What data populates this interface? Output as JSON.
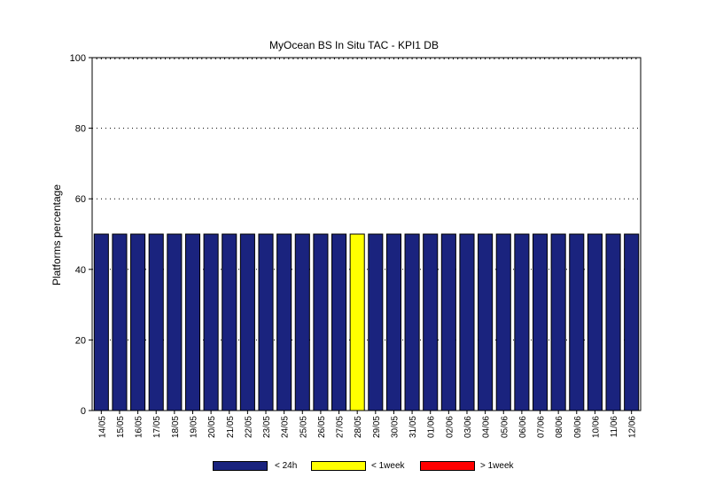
{
  "chart_data": {
    "type": "bar",
    "title": "MyOcean  BS In Situ TAC - KPI1  DB",
    "xlabel": "",
    "ylabel": "Platforms percentage",
    "ylim": [
      0,
      100
    ],
    "yticks": [
      0,
      20,
      40,
      60,
      80,
      100
    ],
    "grid": "horizontal dotted",
    "categories": [
      "14/05",
      "15/05",
      "16/05",
      "17/05",
      "18/05",
      "19/05",
      "20/05",
      "21/05",
      "22/05",
      "23/05",
      "24/05",
      "25/05",
      "26/05",
      "27/05",
      "28/05",
      "29/05",
      "30/05",
      "31/05",
      "01/06",
      "02/06",
      "03/06",
      "04/06",
      "05/06",
      "06/06",
      "07/06",
      "08/06",
      "09/06",
      "10/06",
      "11/06",
      "12/06"
    ],
    "series": [
      {
        "name": "< 24h",
        "color": "#1a237e",
        "values": [
          50,
          50,
          50,
          50,
          50,
          50,
          50,
          50,
          50,
          50,
          50,
          50,
          50,
          50,
          0,
          50,
          50,
          50,
          50,
          50,
          50,
          50,
          50,
          50,
          50,
          50,
          50,
          50,
          50,
          50
        ]
      },
      {
        "name": "< 1week",
        "color": "#ffff00",
        "values": [
          0,
          0,
          0,
          0,
          0,
          0,
          0,
          0,
          0,
          0,
          0,
          0,
          0,
          0,
          50,
          0,
          0,
          0,
          0,
          0,
          0,
          0,
          0,
          0,
          0,
          0,
          0,
          0,
          0,
          0
        ]
      },
      {
        "name": "> 1week",
        "color": "#ff0000",
        "values": [
          0,
          0,
          0,
          0,
          0,
          0,
          0,
          0,
          0,
          0,
          0,
          0,
          0,
          0,
          0,
          0,
          0,
          0,
          0,
          0,
          0,
          0,
          0,
          0,
          0,
          0,
          0,
          0,
          0,
          0
        ]
      }
    ],
    "legend_position": "bottom"
  }
}
